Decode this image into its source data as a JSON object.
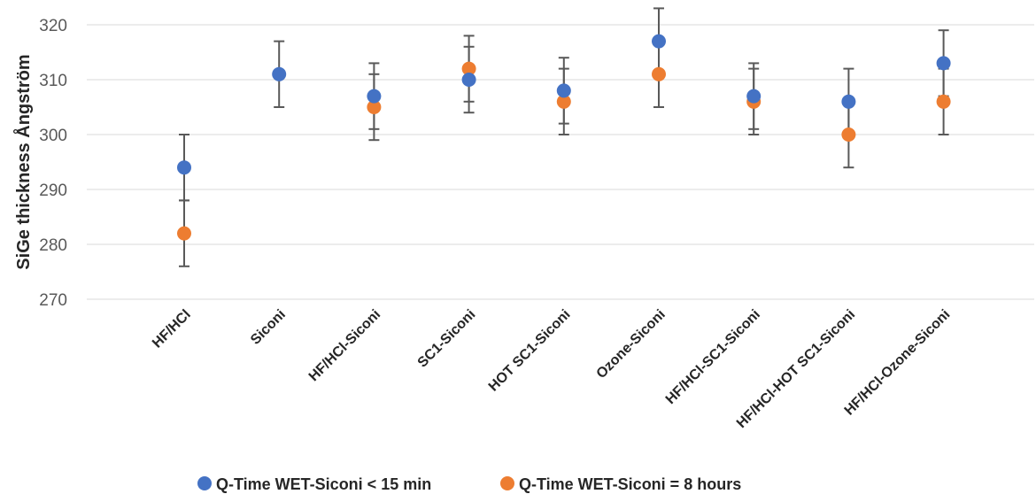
{
  "chart_data": {
    "type": "scatter",
    "title": "",
    "xlabel": "",
    "ylabel": "SiGe thickness Ångström",
    "ylim": [
      270,
      320
    ],
    "yticks": [
      270,
      280,
      290,
      300,
      310,
      320
    ],
    "grid": true,
    "legend_position": "bottom",
    "categories": [
      "HF/HCl",
      "Siconi",
      "HF/HCl-Siconi",
      "SC1-Siconi",
      "HOT SC1-Siconi",
      "Ozone-Siconi",
      "HF/HCl-SC1-Siconi",
      "HF/HCl-HOT SC1-Siconi",
      "HF/HCl-Ozone-Siconi"
    ],
    "series": [
      {
        "name": "Q-Time WET-Siconi < 15 min",
        "color": "#4472C4",
        "values": [
          294,
          311,
          307,
          310,
          308,
          317,
          307,
          306,
          313
        ],
        "error": [
          6,
          6,
          6,
          6,
          6,
          6,
          6,
          6,
          6
        ]
      },
      {
        "name": "Q-Time WET-Siconi = 8 hours",
        "color": "#ED7D31",
        "values": [
          282,
          null,
          305,
          312,
          306,
          311,
          306,
          300,
          306
        ],
        "error": [
          6,
          null,
          6,
          6,
          6,
          6,
          6,
          6,
          6
        ]
      }
    ]
  }
}
